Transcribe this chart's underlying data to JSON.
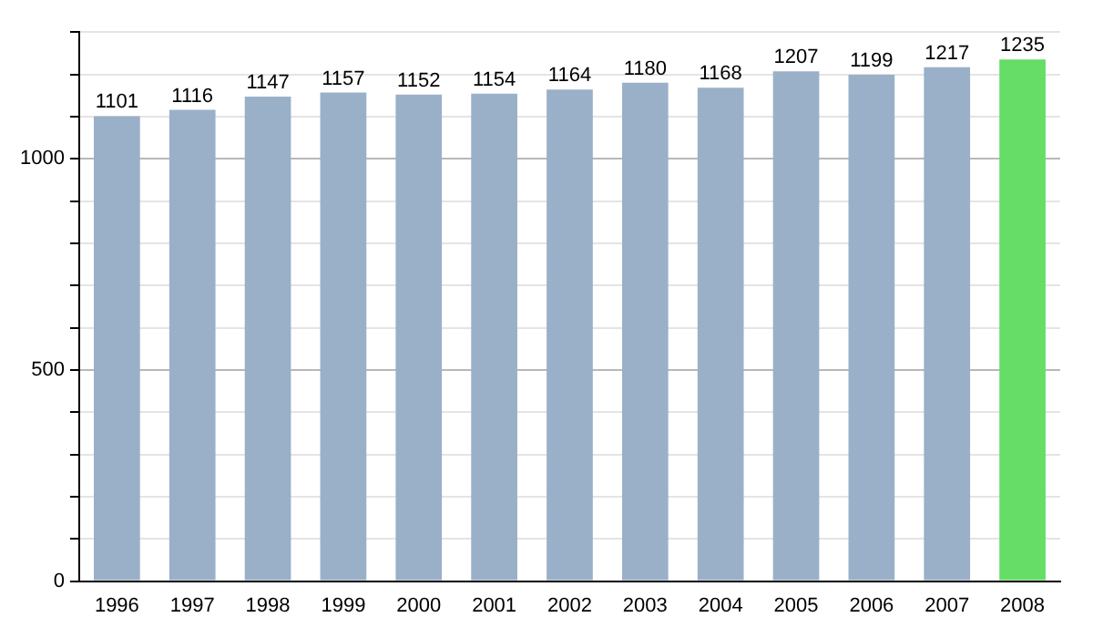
{
  "chart_data": {
    "type": "bar",
    "categories": [
      "1996",
      "1997",
      "1998",
      "1999",
      "2000",
      "2001",
      "2002",
      "2003",
      "2004",
      "2005",
      "2006",
      "2007",
      "2008"
    ],
    "values": [
      1101,
      1116,
      1147,
      1157,
      1152,
      1154,
      1164,
      1180,
      1168,
      1207,
      1199,
      1217,
      1235
    ],
    "colors": [
      "#9ab0c8",
      "#9ab0c8",
      "#9ab0c8",
      "#9ab0c8",
      "#9ab0c8",
      "#9ab0c8",
      "#9ab0c8",
      "#9ab0c8",
      "#9ab0c8",
      "#9ab0c8",
      "#9ab0c8",
      "#9ab0c8",
      "#66dd66"
    ],
    "ylim": [
      0,
      1300
    ],
    "yticks": [
      0,
      {
        "value": 100,
        "label": null
      },
      {
        "value": 200,
        "label": null
      },
      {
        "value": 300,
        "label": null
      },
      {
        "value": 400,
        "label": null
      },
      500,
      {
        "value": 600,
        "label": null
      },
      {
        "value": 700,
        "label": null
      },
      {
        "value": 800,
        "label": null
      },
      {
        "value": 900,
        "label": null
      },
      1000,
      {
        "value": 1100,
        "label": null
      },
      {
        "value": 1200,
        "label": null
      },
      {
        "value": 1300,
        "label": null
      }
    ],
    "grid": "y",
    "data_labels": true
  }
}
